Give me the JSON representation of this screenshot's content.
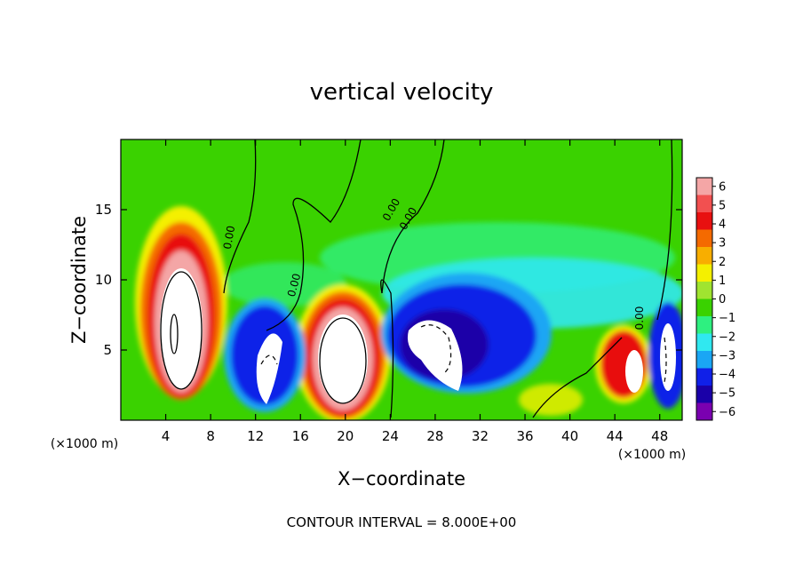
{
  "chart_data": {
    "type": "heatmap",
    "title": "vertical velocity",
    "xlabel": "X−coordinate",
    "ylabel": "Z−coordinate",
    "x_unit_left": "(×1000 m)",
    "x_unit_right": "(×1000 m)",
    "xlim": [
      0,
      50
    ],
    "ylim": [
      0,
      20
    ],
    "x_ticks": [
      4,
      8,
      12,
      16,
      20,
      24,
      28,
      32,
      36,
      40,
      44,
      48
    ],
    "x_tick_labels": [
      "4",
      "8",
      "12",
      "16",
      "20",
      "24",
      "28",
      "32",
      "36",
      "40",
      "44",
      "48"
    ],
    "y_ticks": [
      5,
      10,
      15
    ],
    "y_tick_labels": [
      "5",
      "10",
      "15"
    ],
    "colorbar": {
      "ticks": [
        "6",
        "5",
        "4",
        "3",
        "2",
        "1",
        "0",
        "−1",
        "−2",
        "−3",
        "−4",
        "−5",
        "−6"
      ],
      "colors": [
        "#f4a6a6",
        "#f25050",
        "#e81010",
        "#f46a00",
        "#f8ae00",
        "#f4f000",
        "#a0e430",
        "#3ad200",
        "#2ef080",
        "#30e8f0",
        "#1aa6f4",
        "#1020e8",
        "#1a00a8",
        "#7a00b0"
      ]
    },
    "contour_labels": [
      "0.00",
      "0.00",
      "0.00",
      "0.00",
      "0.00"
    ],
    "features": [
      {
        "kind": "updraft",
        "x": 5,
        "z": 7,
        "rx": 2.6,
        "rz": 6,
        "peak": 6
      },
      {
        "kind": "updraft",
        "x": 19.5,
        "z": 4.5,
        "rx": 3.2,
        "rz": 4.2,
        "peak": 6
      },
      {
        "kind": "updraft",
        "x": 44,
        "z": 3.8,
        "rx": 1.8,
        "rz": 3,
        "peak": 5
      },
      {
        "kind": "downdraft",
        "x": 13.5,
        "z": 3.5,
        "rx": 2.4,
        "rz": 3.5,
        "peak": -6
      },
      {
        "kind": "downdraft",
        "x": 29,
        "z": 5,
        "rx": 3,
        "rz": 3,
        "peak": -6
      },
      {
        "kind": "downdraft",
        "x": 48.5,
        "z": 4,
        "rx": 1.2,
        "rz": 3,
        "peak": -6
      }
    ],
    "footer": "CONTOUR INTERVAL = 8.000E+00"
  }
}
